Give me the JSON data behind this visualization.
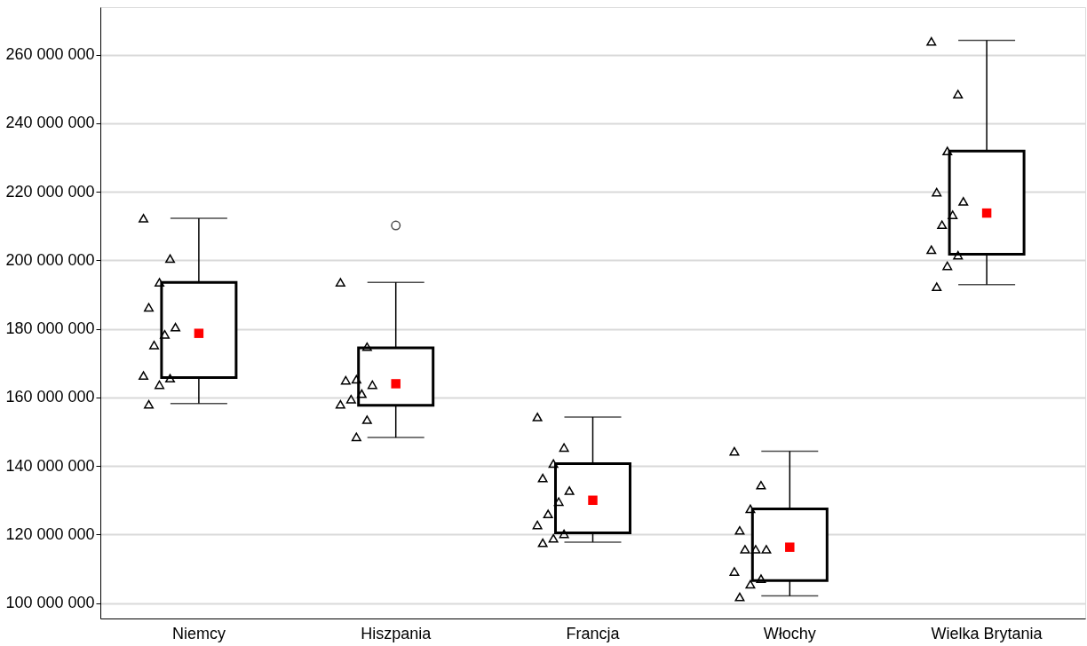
{
  "chart_data": {
    "type": "box",
    "categories": [
      "Niemcy",
      "Hiszpania",
      "Francja",
      "Włochy",
      "Wielka Brytania"
    ],
    "series": [
      {
        "boxes": [
          {
            "low": 158200000,
            "q1": 165800000,
            "median": 178700000,
            "q3": 193600000,
            "high": 212300000
          },
          {
            "low": 148300000,
            "q1": 157700000,
            "median": 164000000,
            "q3": 174500000,
            "high": 193600000,
            "outliers": [
              210200000
            ]
          },
          {
            "low": 117800000,
            "q1": 120500000,
            "median": 130000000,
            "q3": 140700000,
            "high": 154300000
          },
          {
            "low": 102100000,
            "q1": 106600000,
            "median": 116300000,
            "q3": 127500000,
            "high": 144300000
          },
          {
            "low": 192900000,
            "q1": 201800000,
            "median": 213800000,
            "q3": 231900000,
            "high": 264200000
          }
        ]
      },
      {
        "type": "scatter",
        "color": "#000000",
        "marker": "triangle",
        "x": [
          "Niemcy",
          "Niemcy",
          "Niemcy",
          "Niemcy",
          "Niemcy",
          "Niemcy",
          "Niemcy",
          "Niemcy",
          "Niemcy",
          "Niemcy",
          "Niemcy",
          "Hiszpania",
          "Hiszpania",
          "Hiszpania",
          "Hiszpania",
          "Hiszpania",
          "Hiszpania",
          "Hiszpania",
          "Hiszpania",
          "Hiszpania",
          "Hiszpania",
          "Francja",
          "Francja",
          "Francja",
          "Francja",
          "Francja",
          "Francja",
          "Francja",
          "Francja",
          "Francja",
          "Francja",
          "Francja",
          "Włochy",
          "Włochy",
          "Włochy",
          "Włochy",
          "Włochy",
          "Włochy",
          "Włochy",
          "Włochy",
          "Włochy",
          "Włochy",
          "Włochy",
          "Wielka Brytania",
          "Wielka Brytania",
          "Wielka Brytania",
          "Wielka Brytania",
          "Wielka Brytania",
          "Wielka Brytania",
          "Wielka Brytania",
          "Wielka Brytania",
          "Wielka Brytania",
          "Wielka Brytania",
          "Wielka Brytania"
        ],
        "values": [
          212300000,
          200500000,
          193600000,
          186300000,
          180500000,
          178400000,
          175300000,
          166400000,
          165600000,
          163700000,
          158000000,
          193600000,
          174800000,
          165300000,
          165000000,
          163700000,
          161100000,
          159500000,
          158000000,
          153500000,
          148500000,
          154300000,
          145400000,
          140700000,
          136500000,
          132800000,
          129600000,
          126000000,
          122800000,
          120200000,
          118900000,
          117600000,
          144300000,
          134400000,
          127500000,
          121200000,
          115700000,
          115700000,
          115700000,
          109200000,
          107100000,
          105500000,
          101800000,
          263900000,
          248500000,
          231900000,
          219900000,
          217200000,
          213300000,
          210400000,
          203100000,
          201500000,
          198400000,
          192300000
        ]
      }
    ],
    "ylim": [
      95500000,
      273900000
    ],
    "yticks": [
      {
        "value": 100000000,
        "label": "100 000 000"
      },
      {
        "value": 120000000,
        "label": "120 000 000"
      },
      {
        "value": 140000000,
        "label": "140 000 000"
      },
      {
        "value": 160000000,
        "label": "160 000 000"
      },
      {
        "value": 180000000,
        "label": "180 000 000"
      },
      {
        "value": 200000000,
        "label": "200 000 000"
      },
      {
        "value": 220000000,
        "label": "220 000 000"
      },
      {
        "value": 240000000,
        "label": "240 000 000"
      },
      {
        "value": 260000000,
        "label": "260 000 000"
      }
    ],
    "grid": "y"
  }
}
